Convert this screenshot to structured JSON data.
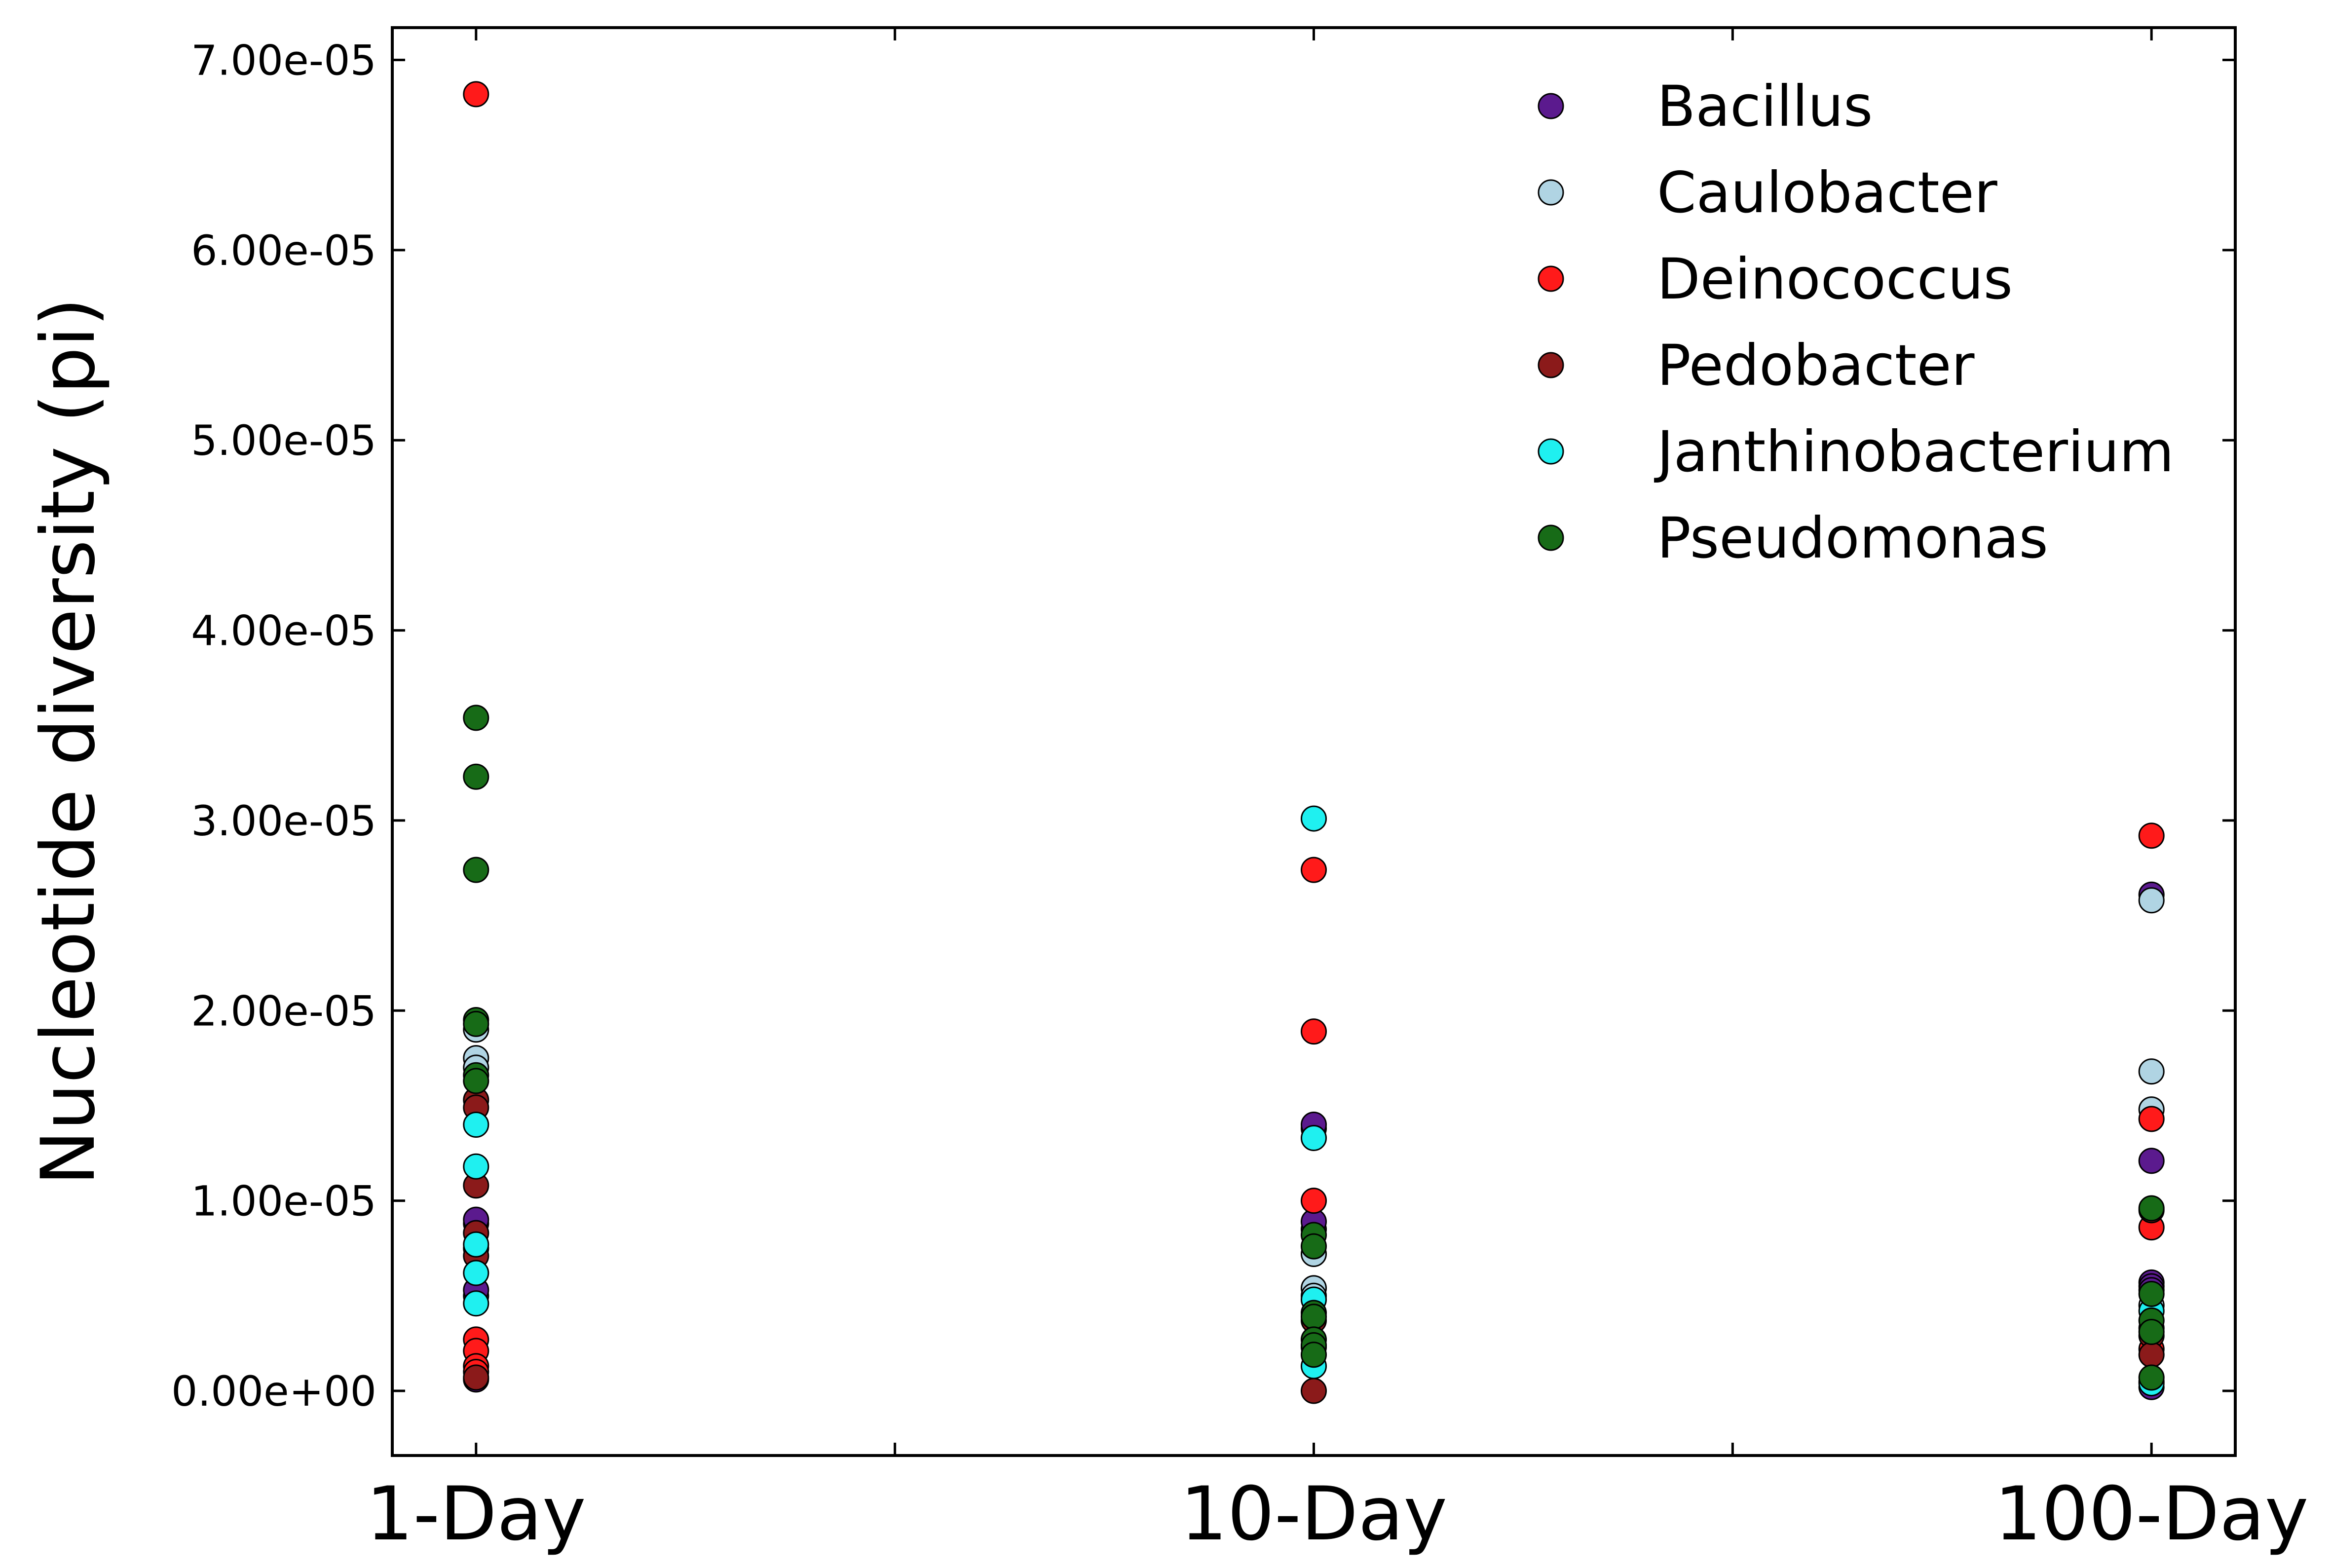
{
  "chart_data": {
    "type": "scatter",
    "title": "",
    "xlabel": "",
    "ylabel": "Nucleotide diversity (pi)",
    "categories": [
      "1-Day",
      "10-Day",
      "100-Day"
    ],
    "xlim": [
      -0.1,
      2.1
    ],
    "ylim": [
      -3.4e-06,
      7.17e-05
    ],
    "y_ticks": [
      0,
      1e-05,
      2e-05,
      3e-05,
      4e-05,
      5e-05,
      6e-05,
      7e-05
    ],
    "y_tick_labels": [
      "0.00e+00",
      "1.00e-05",
      "2.00e-05",
      "3.00e-05",
      "4.00e-05",
      "5.00e-05",
      "6.00e-05",
      "7.00e-05"
    ],
    "x_minor_ticks": [
      0.5,
      1.5
    ],
    "grid": false,
    "legend": {
      "position": "top-right"
    },
    "series": [
      {
        "name": "Bacillus",
        "color": "#5b1a8e",
        "points": [
          [
            0,
            6e-07
          ],
          [
            0,
            5e-06
          ],
          [
            0,
            5.3e-06
          ],
          [
            0,
            8.8e-06
          ],
          [
            0,
            9e-06
          ],
          [
            1,
            1.38e-05
          ],
          [
            1,
            1.4e-05
          ],
          [
            1,
            8.5e-06
          ],
          [
            1,
            8.9e-06
          ],
          [
            1,
            2.3e-06
          ],
          [
            2,
            2.61e-05
          ],
          [
            2,
            1.21e-05
          ],
          [
            2,
            5.7e-06
          ],
          [
            2,
            5.5e-06
          ],
          [
            2,
            5.3e-06
          ],
          [
            2,
            2e-07
          ]
        ]
      },
      {
        "name": "Caulobacter",
        "color": "#b0d4e3",
        "points": [
          [
            0,
            1.9e-05
          ],
          [
            0,
            1.75e-05
          ],
          [
            0,
            1.7e-05
          ],
          [
            0,
            7.5e-06
          ],
          [
            1,
            5.4e-06
          ],
          [
            1,
            5e-06
          ],
          [
            1,
            7.2e-06
          ],
          [
            2,
            2.58e-05
          ],
          [
            2,
            1.68e-05
          ],
          [
            2,
            1.48e-05
          ],
          [
            2,
            4.5e-06
          ],
          [
            2,
            5e-07
          ]
        ]
      },
      {
        "name": "Deinococcus",
        "color": "#ff1a1a",
        "points": [
          [
            0,
            6.82e-05
          ],
          [
            0,
            2.7e-06
          ],
          [
            0,
            2.1e-06
          ],
          [
            0,
            1.3e-06
          ],
          [
            0,
            1e-06
          ],
          [
            1,
            2.74e-05
          ],
          [
            1,
            1.89e-05
          ],
          [
            1,
            1e-05
          ],
          [
            2,
            2.92e-05
          ],
          [
            2,
            1.43e-05
          ],
          [
            2,
            8.6e-06
          ],
          [
            2,
            2.2e-06
          ]
        ]
      },
      {
        "name": "Pedobacter",
        "color": "#8b1a1a",
        "points": [
          [
            0,
            1.53e-05
          ],
          [
            0,
            1.49e-05
          ],
          [
            0,
            1.08e-05
          ],
          [
            0,
            8.3e-06
          ],
          [
            0,
            7.1e-06
          ],
          [
            0,
            7e-07
          ],
          [
            1,
            0.0
          ],
          [
            1,
            3.7e-06
          ],
          [
            2,
            9.5e-06
          ],
          [
            2,
            2.9e-06
          ],
          [
            2,
            1.9e-06
          ]
        ]
      },
      {
        "name": "Janthinobacterium",
        "color": "#1ff0f0",
        "points": [
          [
            0,
            1.4e-05
          ],
          [
            0,
            1.18e-05
          ],
          [
            0,
            7.7e-06
          ],
          [
            0,
            6.2e-06
          ],
          [
            0,
            4.6e-06
          ],
          [
            1,
            3.01e-05
          ],
          [
            1,
            1.33e-05
          ],
          [
            1,
            4.8e-06
          ],
          [
            1,
            1.3e-06
          ],
          [
            2,
            4.2e-06
          ],
          [
            2,
            3.3e-06
          ],
          [
            2,
            4e-07
          ]
        ]
      },
      {
        "name": "Pseudomonas",
        "color": "#176b17",
        "points": [
          [
            0,
            3.54e-05
          ],
          [
            0,
            3.23e-05
          ],
          [
            0,
            2.74e-05
          ],
          [
            0,
            1.95e-05
          ],
          [
            0,
            1.93e-05
          ],
          [
            0,
            1.66e-05
          ],
          [
            0,
            1.63e-05
          ],
          [
            1,
            8.2e-06
          ],
          [
            1,
            7.6e-06
          ],
          [
            1,
            4.1e-06
          ],
          [
            1,
            3.9e-06
          ],
          [
            1,
            2.7e-06
          ],
          [
            1,
            2.4e-06
          ],
          [
            1,
            1.9e-06
          ],
          [
            2,
            9.6e-06
          ],
          [
            2,
            5.1e-06
          ],
          [
            2,
            3.7e-06
          ],
          [
            2,
            3.1e-06
          ],
          [
            2,
            7e-07
          ]
        ]
      }
    ]
  }
}
